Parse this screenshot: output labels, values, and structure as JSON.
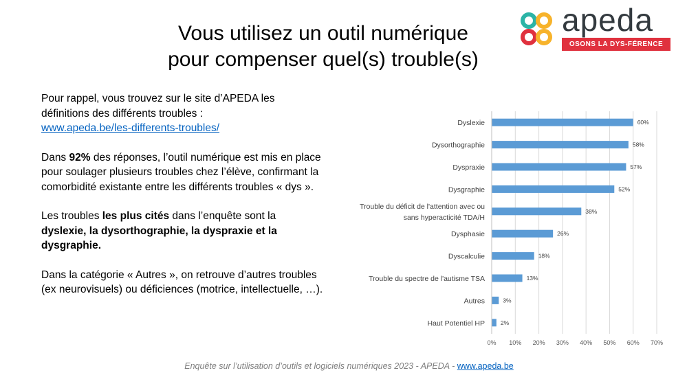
{
  "title": {
    "line1": "Vous utilisez un outil numérique",
    "line2": "pour compenser quel(s) trouble(s)"
  },
  "logo": {
    "word": "apeda",
    "tagline": "OSONS LA DYS-FÉRENCE",
    "colors": [
      "#2bb4a6",
      "#f7b32b",
      "#e0313e",
      "#8cc63f"
    ]
  },
  "text": {
    "p1_a": "Pour rappel, vous trouvez sur le site d’APEDA les définitions des différents troubles :",
    "p1_link": "www.apeda.be/les-differents-troubles/",
    "p2_a": "Dans ",
    "p2_b": "92%",
    "p2_c": " des réponses, l’outil numérique est mis en place pour soulager plusieurs troubles chez l’élève, confirmant la comorbidité existante entre les différents troubles « dys ».",
    "p3_a": "Les troubles ",
    "p3_b": "les plus cités",
    "p3_c": " dans l’enquête sont la ",
    "p3_d": "dyslexie, la dysorthographie, la dyspraxie et la dysgraphie.",
    "p4": "Dans la catégorie « Autres », on retrouve d’autres troubles (ex neurovisuels) ou déficiences (motrice, intellectuelle, …)."
  },
  "footer": {
    "text": "Enquête sur l’utilisation d’outils et logiciels numériques 2023 - APEDA  - ",
    "link": "www.apeda.be"
  },
  "chart_data": {
    "type": "bar",
    "orientation": "horizontal",
    "categories": [
      [
        "Dyslexie"
      ],
      [
        "Dysorthographie"
      ],
      [
        "Dyspraxie"
      ],
      [
        "Dysgraphie"
      ],
      [
        "Trouble du déficit de l'attention avec ou",
        "sans  hyperacticité TDA/H"
      ],
      [
        "Dysphasie"
      ],
      [
        "Dyscalculie"
      ],
      [
        "Trouble du spectre de l'autisme TSA"
      ],
      [
        "Autres"
      ],
      [
        "Haut Potentiel HP"
      ]
    ],
    "values": [
      60,
      58,
      57,
      52,
      38,
      26,
      18,
      13,
      3,
      2
    ],
    "data_labels": [
      "60%",
      "58%",
      "57%",
      "52%",
      "38%",
      "26%",
      "18%",
      "13%",
      "3%",
      "2%"
    ],
    "xticks": [
      0,
      10,
      20,
      30,
      40,
      50,
      60,
      70
    ],
    "xtick_labels": [
      "0%",
      "10%",
      "20%",
      "30%",
      "40%",
      "50%",
      "60%",
      "70%"
    ],
    "xlim": [
      0,
      70
    ],
    "grid": true,
    "bar_color": "#5b9bd5"
  }
}
